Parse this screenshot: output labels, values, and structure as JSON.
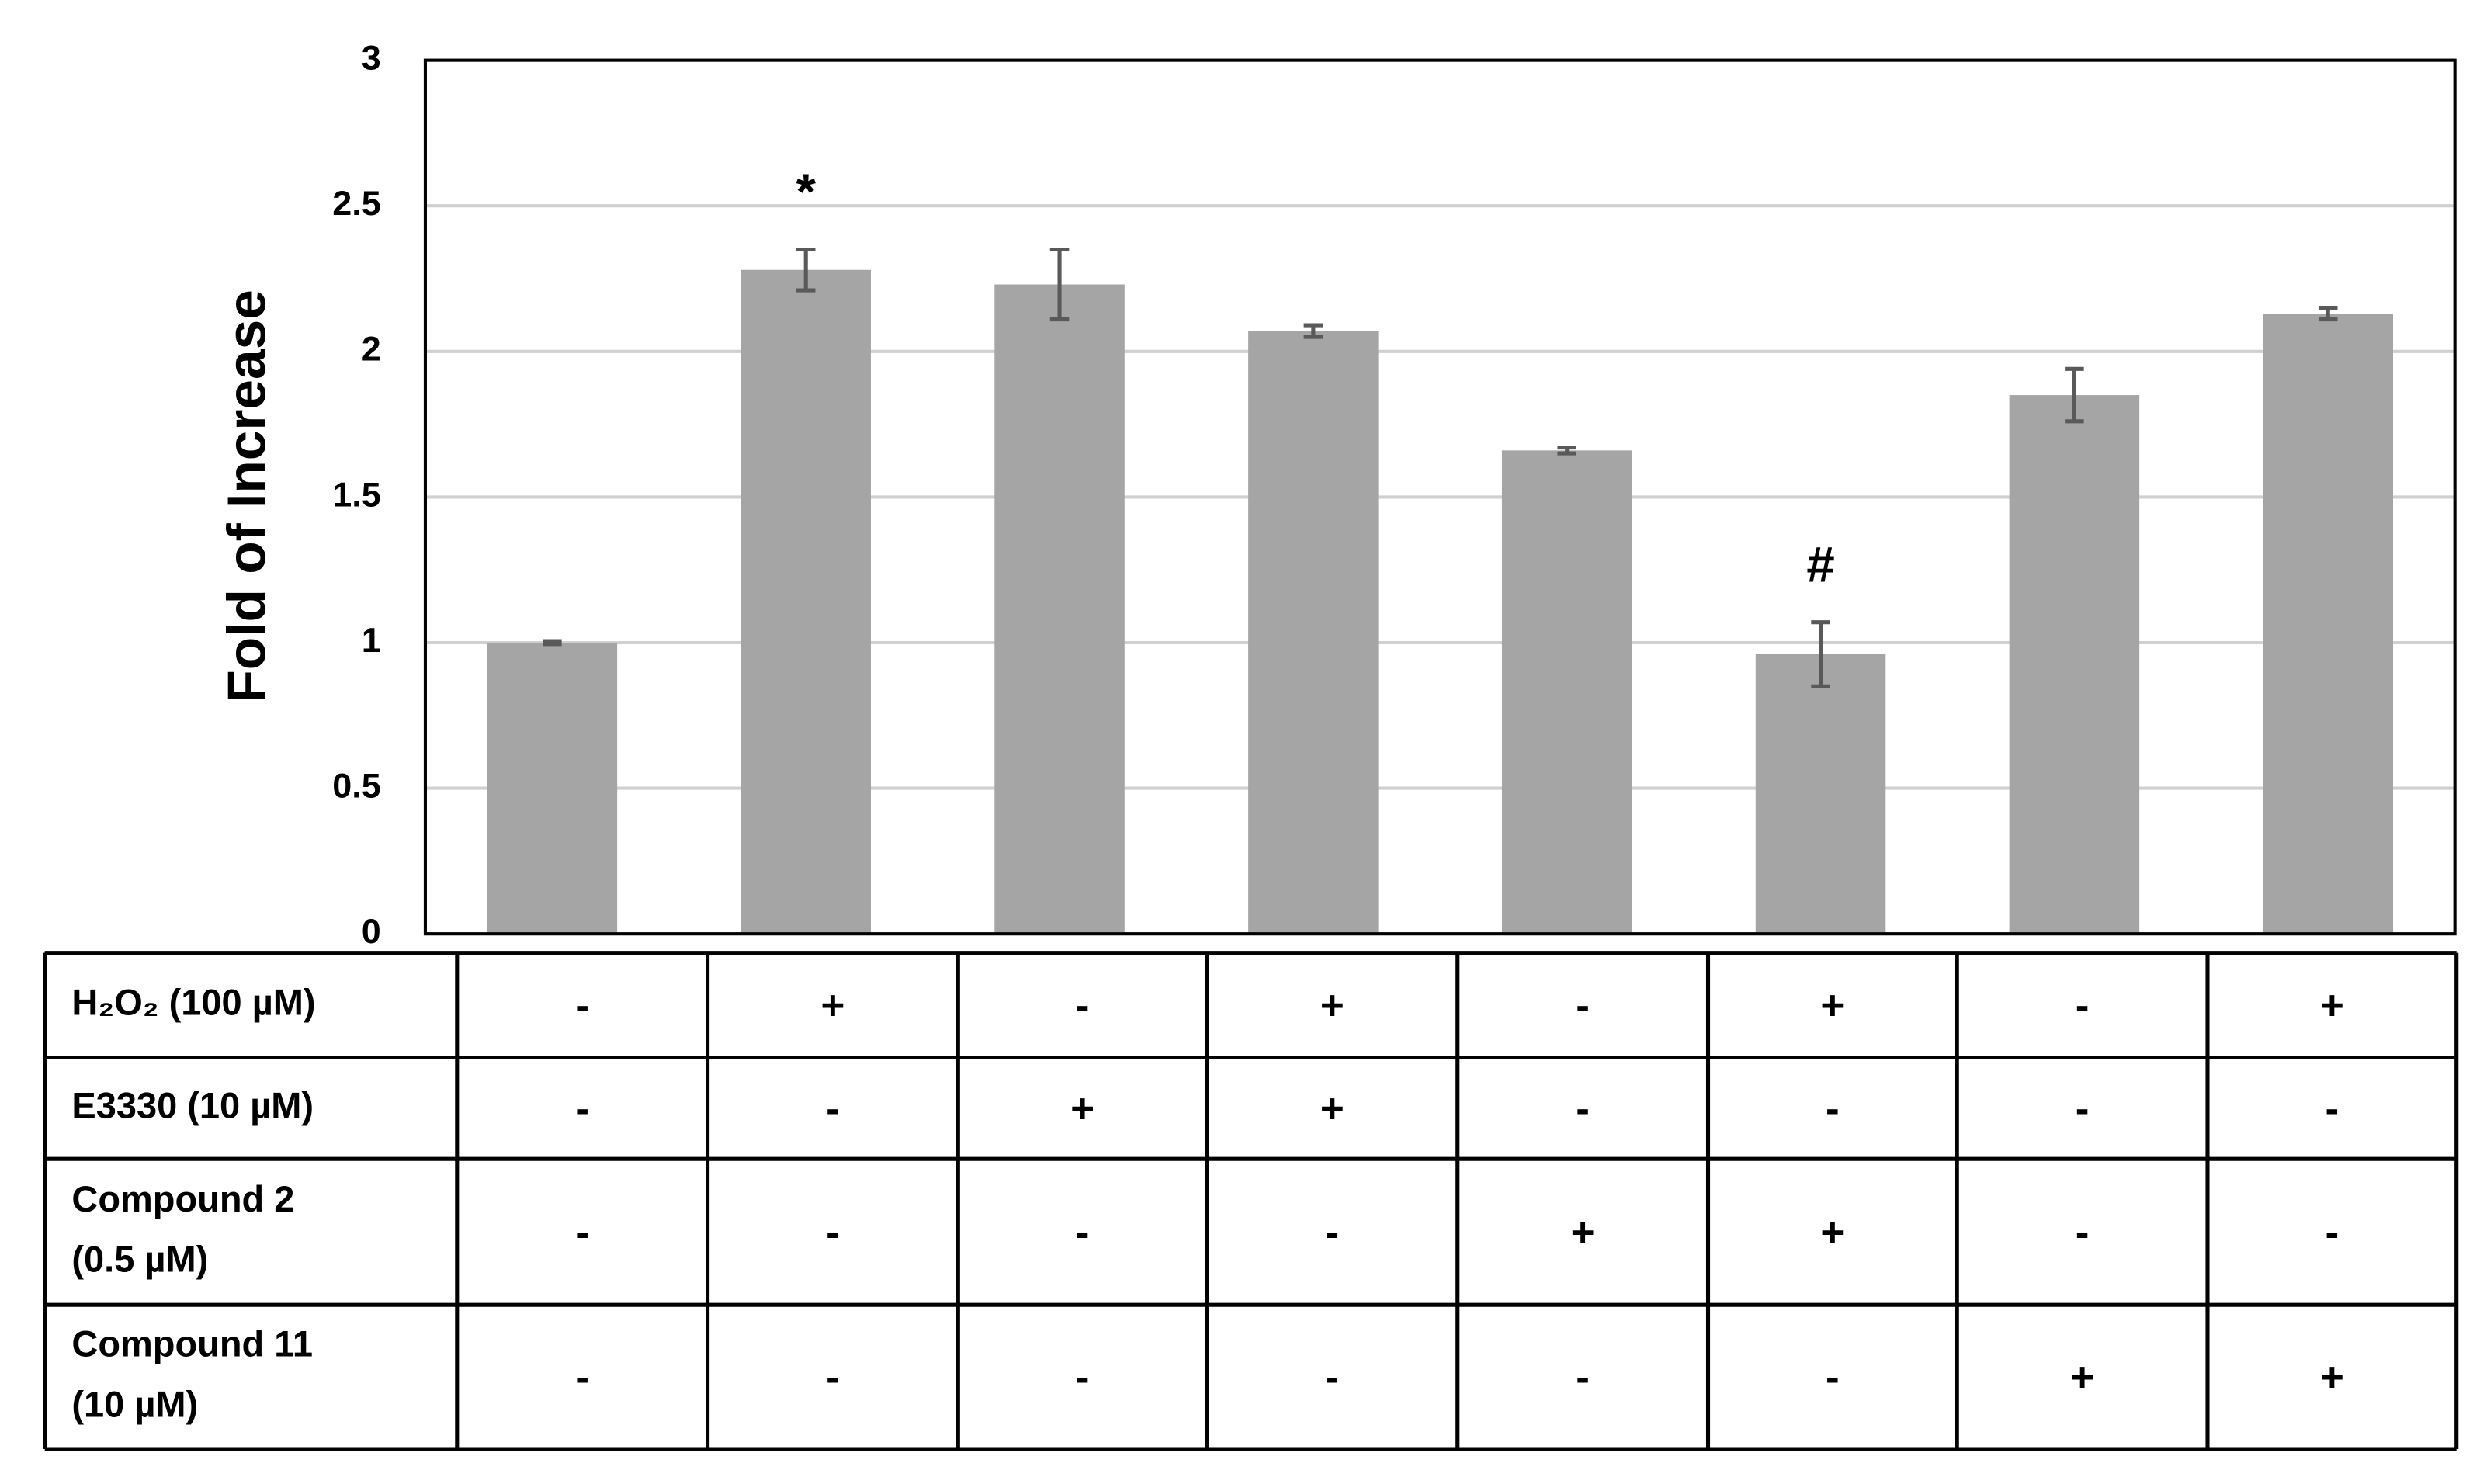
{
  "chart_data": {
    "type": "bar",
    "y_label": "Fold of Increase",
    "values": [
      1.0,
      2.28,
      2.23,
      2.07,
      1.66,
      0.96,
      1.85,
      2.13
    ],
    "errors": [
      0.005,
      0.07,
      0.12,
      0.02,
      0.01,
      0.11,
      0.09,
      0.02
    ],
    "significance": [
      null,
      "*",
      null,
      null,
      null,
      "#",
      null,
      null
    ],
    "color": "#a5a5a5",
    "error_color": "#595959",
    "ylim": [
      0,
      3
    ],
    "yticks": [
      0,
      0.5,
      1,
      1.5,
      2,
      2.5,
      3
    ],
    "grid": true
  },
  "conditions": {
    "rows": [
      {
        "label": [
          "H₂O₂ (100 µM)"
        ],
        "cells": [
          "-",
          "+",
          "-",
          "+",
          "-",
          "+",
          "-",
          "+"
        ]
      },
      {
        "label": [
          "E3330 (10 µM)"
        ],
        "cells": [
          "-",
          "-",
          "+",
          "+",
          "-",
          "-",
          "-",
          "-"
        ]
      },
      {
        "label": [
          "Compound 2",
          "(0.5 µM)"
        ],
        "cells": [
          "-",
          "-",
          "-",
          "-",
          "+",
          "+",
          "-",
          "-"
        ]
      },
      {
        "label": [
          "Compound 11",
          "(10 µM)"
        ],
        "cells": [
          "-",
          "-",
          "-",
          "-",
          "-",
          "-",
          "+",
          "+"
        ]
      }
    ]
  }
}
